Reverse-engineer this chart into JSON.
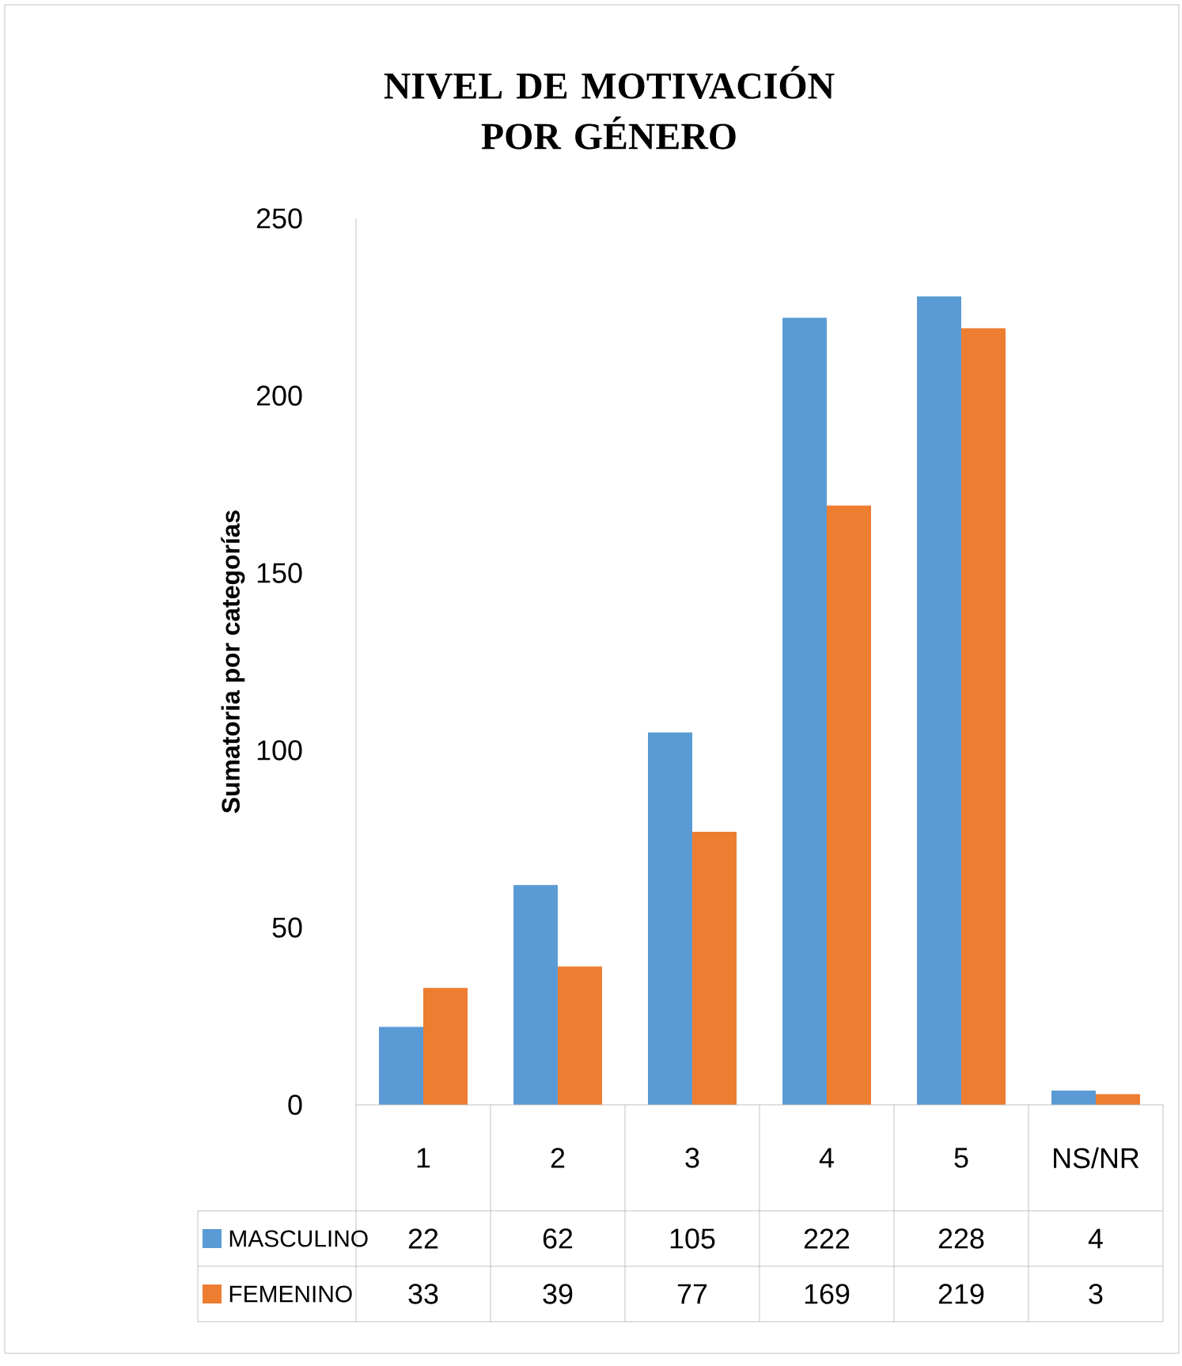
{
  "chart_data": {
    "type": "bar",
    "title": "NIVEL DE MOTIVACIÓN POR GÉNERO",
    "ylabel": "Sumatoria por categorías",
    "categories": [
      "1",
      "2",
      "3",
      "4",
      "5",
      "NS/NR"
    ],
    "series": [
      {
        "name": "MASCULINO",
        "color": "#5b9bd5",
        "values": [
          22,
          62,
          105,
          222,
          228,
          4
        ]
      },
      {
        "name": "FEMENINO",
        "color": "#ed7d31",
        "values": [
          33,
          39,
          77,
          169,
          219,
          3
        ]
      }
    ],
    "ylim": [
      0,
      250
    ],
    "yticks": [
      0,
      50,
      100,
      150,
      200,
      250
    ],
    "grid": false,
    "legend": "bottom",
    "data_labels": true
  }
}
